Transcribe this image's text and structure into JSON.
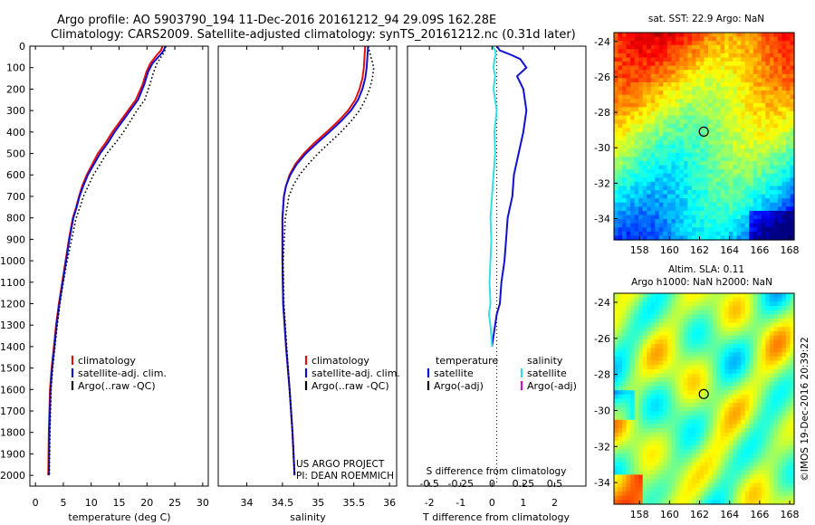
{
  "header": {
    "line1": "Argo profile: AO 5903790_194 11-Dec-2016 20161212_94 29.09S 162.28E",
    "line2": "Climatology: CARS2009. Satellite-adjusted climatology: synTS_20161212.nc (0.31d later)"
  },
  "footer_credit": {
    "line1": "US ARGO PROJECT",
    "line2": "PI: DEAN ROEMMICH"
  },
  "imos_stamp": "©IMOS 19-Dec-2016 20:39:22",
  "colors": {
    "climatology": "#e01010",
    "satellite": "#1010d0",
    "argo": "#000000",
    "sal_sat": "#30e0e0",
    "argo_adj": "#d010d0"
  },
  "chart_data": [
    {
      "type": "line",
      "id": "temperature",
      "xlabel": "temperature (deg C)",
      "xlim": [
        -1,
        31
      ],
      "ylim": [
        0,
        2050
      ],
      "y_reversed": true,
      "xticks": [
        0,
        5,
        10,
        15,
        20,
        25,
        30
      ],
      "yticks": [
        0,
        100,
        200,
        300,
        400,
        500,
        600,
        700,
        800,
        900,
        1000,
        1100,
        1200,
        1300,
        1400,
        1500,
        1600,
        1700,
        1800,
        1900,
        2000
      ],
      "legend": [
        "climatology",
        "satellite-adj. clim.",
        "Argo(..raw -QC)"
      ],
      "series": [
        {
          "name": "climatology",
          "style": "solid",
          "color_key": "climatology",
          "x": [
            22.8,
            22.5,
            21.8,
            20.6,
            19.9,
            19.2,
            18.0,
            16.6,
            15.2,
            13.8,
            12.6,
            11.2,
            10.2,
            9.2,
            8.4,
            7.8,
            7.3,
            6.7,
            6.0,
            5.4,
            4.8,
            4.2,
            3.7,
            3.3,
            2.9,
            2.6,
            2.4,
            2.3
          ],
          "y": [
            0,
            20,
            40,
            80,
            120,
            180,
            250,
            300,
            350,
            400,
            450,
            500,
            550,
            600,
            650,
            700,
            750,
            800,
            900,
            1000,
            1100,
            1200,
            1300,
            1400,
            1500,
            1600,
            1800,
            2000
          ]
        },
        {
          "name": "satellite-adj. clim.",
          "style": "solid",
          "color_key": "satellite",
          "x": [
            23.3,
            23.0,
            22.4,
            21.0,
            20.2,
            19.5,
            18.4,
            17.0,
            15.6,
            14.2,
            13.0,
            11.6,
            10.5,
            9.4,
            8.6,
            7.9,
            7.4,
            6.8,
            6.1,
            5.5,
            4.9,
            4.3,
            3.8,
            3.4,
            3.0,
            2.7,
            2.5,
            2.4
          ],
          "y": [
            0,
            20,
            40,
            80,
            120,
            180,
            250,
            300,
            350,
            400,
            450,
            500,
            550,
            600,
            650,
            700,
            750,
            800,
            900,
            1000,
            1100,
            1200,
            1300,
            1400,
            1500,
            1600,
            1800,
            2000
          ]
        },
        {
          "name": "Argo(..raw -QC)",
          "style": "dotted",
          "color_key": "argo",
          "x": [
            23.4,
            23.2,
            22.8,
            21.8,
            21.2,
            20.5,
            19.6,
            18.2,
            17.0,
            15.8,
            14.4,
            12.8,
            11.6,
            10.4,
            9.5,
            8.6,
            8.0,
            7.3,
            6.5,
            5.7,
            5.0,
            4.4,
            3.9,
            3.5,
            3.1,
            2.8,
            2.6,
            2.5
          ],
          "y": [
            0,
            20,
            40,
            80,
            120,
            180,
            250,
            300,
            350,
            400,
            450,
            500,
            550,
            600,
            650,
            700,
            750,
            800,
            900,
            1000,
            1100,
            1200,
            1300,
            1400,
            1500,
            1600,
            1800,
            2000
          ]
        }
      ]
    },
    {
      "type": "line",
      "id": "salinity",
      "xlabel": "salinity",
      "xlim": [
        33.6,
        36.1
      ],
      "ylim": [
        0,
        2050
      ],
      "y_reversed": true,
      "xticks": [
        34,
        34.5,
        35,
        35.5,
        36
      ],
      "legend": [
        "climatology",
        "satellite-adj. clim.",
        "Argo(..raw -QC)"
      ],
      "series": [
        {
          "name": "climatology",
          "style": "solid",
          "color_key": "climatology",
          "x": [
            35.66,
            35.65,
            35.64,
            35.62,
            35.58,
            35.52,
            35.42,
            35.28,
            35.12,
            34.95,
            34.8,
            34.68,
            34.6,
            34.55,
            34.52,
            34.5,
            34.5,
            34.51,
            34.55,
            34.6,
            34.64,
            34.67
          ],
          "y": [
            0,
            50,
            100,
            150,
            200,
            250,
            300,
            350,
            400,
            450,
            500,
            550,
            600,
            650,
            700,
            800,
            1000,
            1200,
            1400,
            1600,
            1800,
            2000
          ]
        },
        {
          "name": "satellite-adj. clim.",
          "style": "solid",
          "color_key": "satellite",
          "x": [
            35.7,
            35.69,
            35.68,
            35.66,
            35.62,
            35.56,
            35.46,
            35.32,
            35.16,
            34.99,
            34.83,
            34.7,
            34.61,
            34.55,
            34.52,
            34.5,
            34.5,
            34.51,
            34.55,
            34.6,
            34.64,
            34.67
          ],
          "y": [
            0,
            50,
            100,
            150,
            200,
            250,
            300,
            350,
            400,
            450,
            500,
            550,
            600,
            650,
            700,
            800,
            1000,
            1200,
            1400,
            1600,
            1800,
            2000
          ]
        },
        {
          "name": "Argo(..raw -QC)",
          "style": "dotted",
          "color_key": "argo",
          "x": [
            35.7,
            35.74,
            35.78,
            35.76,
            35.72,
            35.66,
            35.58,
            35.46,
            35.32,
            35.16,
            35.0,
            34.86,
            34.74,
            34.65,
            34.59,
            34.54,
            34.51,
            34.52,
            34.56,
            34.6,
            34.64,
            34.67
          ],
          "y": [
            0,
            50,
            100,
            150,
            200,
            250,
            300,
            350,
            400,
            450,
            500,
            550,
            600,
            650,
            700,
            800,
            1000,
            1200,
            1400,
            1600,
            1800,
            2000
          ]
        }
      ]
    },
    {
      "type": "line",
      "id": "difference",
      "xlabel": "T difference from climatology",
      "top_label": "S difference from climatology",
      "xlim": [
        -2.7,
        3.0
      ],
      "ylim": [
        0,
        2050
      ],
      "y_reversed": true,
      "xticks": [
        -2,
        -1,
        0,
        1,
        2
      ],
      "s_ticks": [
        "-0.5",
        "-0.25",
        "0",
        "0.25",
        "0.5"
      ],
      "s_tick_x": [
        -2,
        -1,
        0,
        1,
        2
      ],
      "legend_temperature": {
        "heading": "temperature",
        "items": [
          "satellite",
          "Argo(-adj)"
        ]
      },
      "legend_salinity": {
        "heading": "salinity",
        "items": [
          "satellite",
          "Argo(-adj)"
        ]
      },
      "series": [
        {
          "name": "temperature satellite",
          "style": "solid",
          "color_key": "satellite",
          "x": [
            0.15,
            0.25,
            0.6,
            0.9,
            1.1,
            0.8,
            1.0,
            1.1,
            1.0,
            0.85,
            0.7,
            0.65,
            0.5,
            0.45,
            0.4,
            0.3,
            0.25,
            0.15,
            0.1,
            0.05,
            0.0
          ],
          "y": [
            0,
            20,
            40,
            60,
            100,
            140,
            200,
            300,
            400,
            500,
            600,
            700,
            800,
            900,
            1000,
            1100,
            1200,
            1250,
            1300,
            1350,
            1400
          ]
        },
        {
          "name": "salinity satellite",
          "style": "solid",
          "color_key": "sal_sat",
          "x": [
            0.0,
            0.1,
            0.12,
            0.08,
            0.05,
            0.1,
            0.05,
            0.15,
            0.08,
            0.1,
            0.05,
            0.0,
            -0.05,
            -0.02,
            -0.05,
            -0.08,
            -0.05,
            -0.1,
            -0.05,
            -0.02,
            0.0
          ],
          "y": [
            0,
            20,
            40,
            60,
            100,
            140,
            200,
            300,
            400,
            500,
            600,
            700,
            800,
            900,
            1000,
            1100,
            1200,
            1250,
            1300,
            1350,
            1400
          ]
        }
      ]
    },
    {
      "type": "heatmap",
      "id": "sst_map",
      "title": "sat. SST: 22.9 Argo: NaN",
      "xlim": [
        156.3,
        168.3
      ],
      "ylim": [
        -35.2,
        -23.5
      ],
      "xticks": [
        158,
        160,
        162,
        164,
        166,
        168
      ],
      "yticks": [
        -24,
        -26,
        -28,
        -30,
        -32,
        -34
      ],
      "marker": {
        "lon": 162.28,
        "lat": -29.09
      }
    },
    {
      "type": "heatmap",
      "id": "sla_map",
      "title": "Altim. SLA: 0.11",
      "subtitle": "Argo h1000: NaN h2000: NaN",
      "xlim": [
        156.3,
        168.3
      ],
      "ylim": [
        -35.2,
        -23.5
      ],
      "xticks": [
        158,
        160,
        162,
        164,
        166,
        168
      ],
      "yticks": [
        -24,
        -26,
        -28,
        -30,
        -32,
        -34
      ],
      "marker": {
        "lon": 162.28,
        "lat": -29.09
      }
    }
  ]
}
